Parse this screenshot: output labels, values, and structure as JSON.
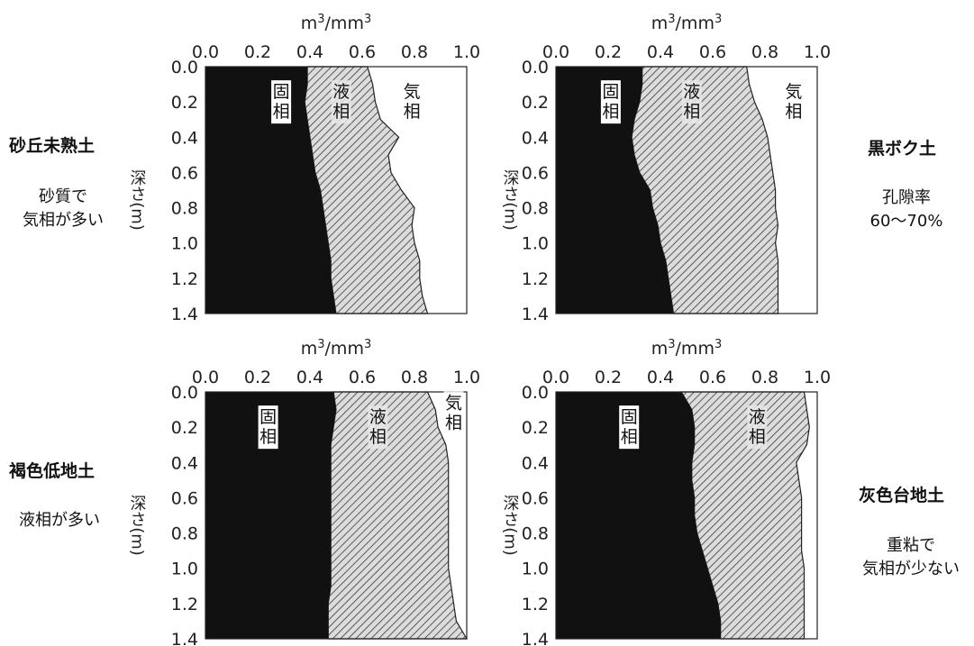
{
  "chart_data": [
    {
      "type": "area",
      "panel": "top-left",
      "soil_name": "砂丘未熟土",
      "description": [
        "砂質で",
        "気相が多い"
      ],
      "x_label_base": "m",
      "x_label_sup": "3",
      "x_label_mid": "/m",
      "y_label_text": "深さ(",
      "y_label_unit": "m",
      "y_label_close": ")",
      "xlim": [
        0.0,
        1.0
      ],
      "ylim": [
        0.0,
        1.4
      ],
      "y_inverted": true,
      "x_ticks": [
        "0.0",
        "0.2",
        "0.4",
        "0.6",
        "0.8",
        "1.0"
      ],
      "y_ticks": [
        "0.0",
        "0.2",
        "0.4",
        "0.6",
        "0.8",
        "1.0",
        "1.2",
        "1.4"
      ],
      "depth": [
        0.0,
        0.1,
        0.2,
        0.3,
        0.4,
        0.5,
        0.6,
        0.7,
        0.8,
        0.9,
        1.0,
        1.1,
        1.2,
        1.3,
        1.4
      ],
      "series": [
        {
          "name": "固相",
          "values": [
            0.39,
            0.39,
            0.38,
            0.39,
            0.4,
            0.41,
            0.42,
            0.44,
            0.45,
            0.46,
            0.47,
            0.48,
            0.48,
            0.49,
            0.5
          ]
        },
        {
          "name": "液相",
          "values": [
            0.62,
            0.64,
            0.65,
            0.67,
            0.74,
            0.7,
            0.71,
            0.75,
            0.8,
            0.79,
            0.8,
            0.82,
            0.82,
            0.83,
            0.85
          ]
        },
        {
          "name": "気相",
          "values": [
            1.0,
            1.0,
            1.0,
            1.0,
            1.0,
            1.0,
            1.0,
            1.0,
            1.0,
            1.0,
            1.0,
            1.0,
            1.0,
            1.0,
            1.0
          ]
        }
      ],
      "label_positions": [
        {
          "x": 0.29,
          "y": 0.2
        },
        {
          "x": 0.52,
          "y": 0.2
        },
        {
          "x": 0.79,
          "y": 0.2
        }
      ]
    },
    {
      "type": "area",
      "panel": "top-right",
      "soil_name": "黒ボク土",
      "description": [
        "孔隙率",
        "60〜70%"
      ],
      "x_label_base": "m",
      "x_label_sup": "3",
      "x_label_mid": "/m",
      "y_label_text": "深さ(",
      "y_label_unit": "m",
      "y_label_close": ")",
      "xlim": [
        0.0,
        1.0
      ],
      "ylim": [
        0.0,
        1.4
      ],
      "y_inverted": true,
      "x_ticks": [
        "0.0",
        "0.2",
        "0.4",
        "0.6",
        "0.8",
        "1.0"
      ],
      "y_ticks": [
        "0.0",
        "0.2",
        "0.4",
        "0.6",
        "0.8",
        "1.0",
        "1.2",
        "1.4"
      ],
      "depth": [
        0.0,
        0.1,
        0.2,
        0.3,
        0.4,
        0.5,
        0.6,
        0.7,
        0.8,
        0.9,
        1.0,
        1.1,
        1.2,
        1.3,
        1.4
      ],
      "series": [
        {
          "name": "固相",
          "values": [
            0.33,
            0.33,
            0.32,
            0.3,
            0.29,
            0.3,
            0.32,
            0.36,
            0.37,
            0.39,
            0.4,
            0.42,
            0.43,
            0.44,
            0.45
          ]
        },
        {
          "name": "液相",
          "values": [
            0.73,
            0.74,
            0.76,
            0.79,
            0.81,
            0.82,
            0.83,
            0.84,
            0.84,
            0.85,
            0.84,
            0.85,
            0.85,
            0.85,
            0.85
          ]
        },
        {
          "name": "気相",
          "values": [
            1.0,
            1.0,
            1.0,
            1.0,
            1.0,
            1.0,
            1.0,
            1.0,
            1.0,
            1.0,
            1.0,
            1.0,
            1.0,
            1.0,
            1.0
          ]
        }
      ],
      "label_positions": [
        {
          "x": 0.21,
          "y": 0.2
        },
        {
          "x": 0.52,
          "y": 0.2
        },
        {
          "x": 0.91,
          "y": 0.2
        }
      ]
    },
    {
      "type": "area",
      "panel": "bottom-left",
      "soil_name": "褐色低地土",
      "description": [
        "液相が多い"
      ],
      "x_label_base": "m",
      "x_label_sup": "3",
      "x_label_mid": "/m",
      "y_label_text": "深さ(",
      "y_label_unit": "m",
      "y_label_close": ")",
      "xlim": [
        0.0,
        1.0
      ],
      "ylim": [
        0.0,
        1.4
      ],
      "y_inverted": true,
      "x_ticks": [
        "0.0",
        "0.2",
        "0.4",
        "0.6",
        "0.8",
        "1.0"
      ],
      "y_ticks": [
        "0.0",
        "0.2",
        "0.4",
        "0.6",
        "0.8",
        "1.0",
        "1.2",
        "1.4"
      ],
      "depth": [
        0.0,
        0.1,
        0.2,
        0.3,
        0.4,
        0.5,
        0.6,
        0.7,
        0.8,
        0.9,
        1.0,
        1.1,
        1.2,
        1.3,
        1.4
      ],
      "series": [
        {
          "name": "固相",
          "values": [
            0.49,
            0.5,
            0.49,
            0.48,
            0.48,
            0.48,
            0.48,
            0.48,
            0.48,
            0.48,
            0.48,
            0.48,
            0.47,
            0.47,
            0.47
          ]
        },
        {
          "name": "液相",
          "values": [
            0.85,
            0.88,
            0.89,
            0.92,
            0.93,
            0.93,
            0.93,
            0.93,
            0.93,
            0.93,
            0.93,
            0.94,
            0.95,
            0.96,
            1.0
          ]
        },
        {
          "name": "気相",
          "values": [
            1.0,
            1.0,
            1.0,
            1.0,
            1.0,
            1.0,
            1.0,
            1.0,
            1.0,
            1.0,
            1.0,
            1.0,
            1.0,
            1.0,
            1.0
          ]
        }
      ],
      "label_positions": [
        {
          "x": 0.24,
          "y": 0.2
        },
        {
          "x": 0.66,
          "y": 0.2
        },
        {
          "x": 0.95,
          "y": 0.12
        }
      ]
    },
    {
      "type": "area",
      "panel": "bottom-right",
      "soil_name": "灰色台地土",
      "description": [
        "重粘で",
        "気相が少ない"
      ],
      "x_label_base": "m",
      "x_label_sup": "3",
      "x_label_mid": "/m",
      "y_label_text": "深さ(",
      "y_label_unit": "m",
      "y_label_close": ")",
      "xlim": [
        0.0,
        1.0
      ],
      "ylim": [
        0.0,
        1.4
      ],
      "y_inverted": true,
      "x_ticks": [
        "0.0",
        "0.2",
        "0.4",
        "0.6",
        "0.8",
        "1.0"
      ],
      "y_ticks": [
        "0.0",
        "0.2",
        "0.4",
        "0.6",
        "0.8",
        "1.0",
        "1.2",
        "1.4"
      ],
      "depth": [
        0.0,
        0.1,
        0.2,
        0.3,
        0.4,
        0.5,
        0.6,
        0.7,
        0.8,
        0.9,
        1.0,
        1.1,
        1.2,
        1.3,
        1.4
      ],
      "series": [
        {
          "name": "固相",
          "values": [
            0.48,
            0.52,
            0.53,
            0.53,
            0.52,
            0.52,
            0.53,
            0.53,
            0.54,
            0.56,
            0.58,
            0.6,
            0.62,
            0.63,
            0.63
          ]
        },
        {
          "name": "液相",
          "values": [
            0.95,
            0.96,
            0.97,
            0.96,
            0.92,
            0.93,
            0.94,
            0.94,
            0.94,
            0.94,
            0.95,
            0.95,
            0.95,
            0.95,
            0.95
          ]
        },
        {
          "name": "気相",
          "values": [
            1.0,
            1.0,
            1.0,
            1.0,
            1.0,
            1.0,
            1.0,
            1.0,
            1.0,
            1.0,
            1.0,
            1.0,
            1.0,
            1.0,
            1.0
          ]
        }
      ],
      "label_positions": [
        {
          "x": 0.28,
          "y": 0.2
        },
        {
          "x": 0.77,
          "y": 0.2
        },
        {
          "x": null,
          "y": null
        }
      ]
    }
  ],
  "colors": {
    "solid": "#111111",
    "liquid_fill": "#dcdcdc",
    "liquid_hatch": "#3a3a3a",
    "gas": "#ffffff"
  }
}
